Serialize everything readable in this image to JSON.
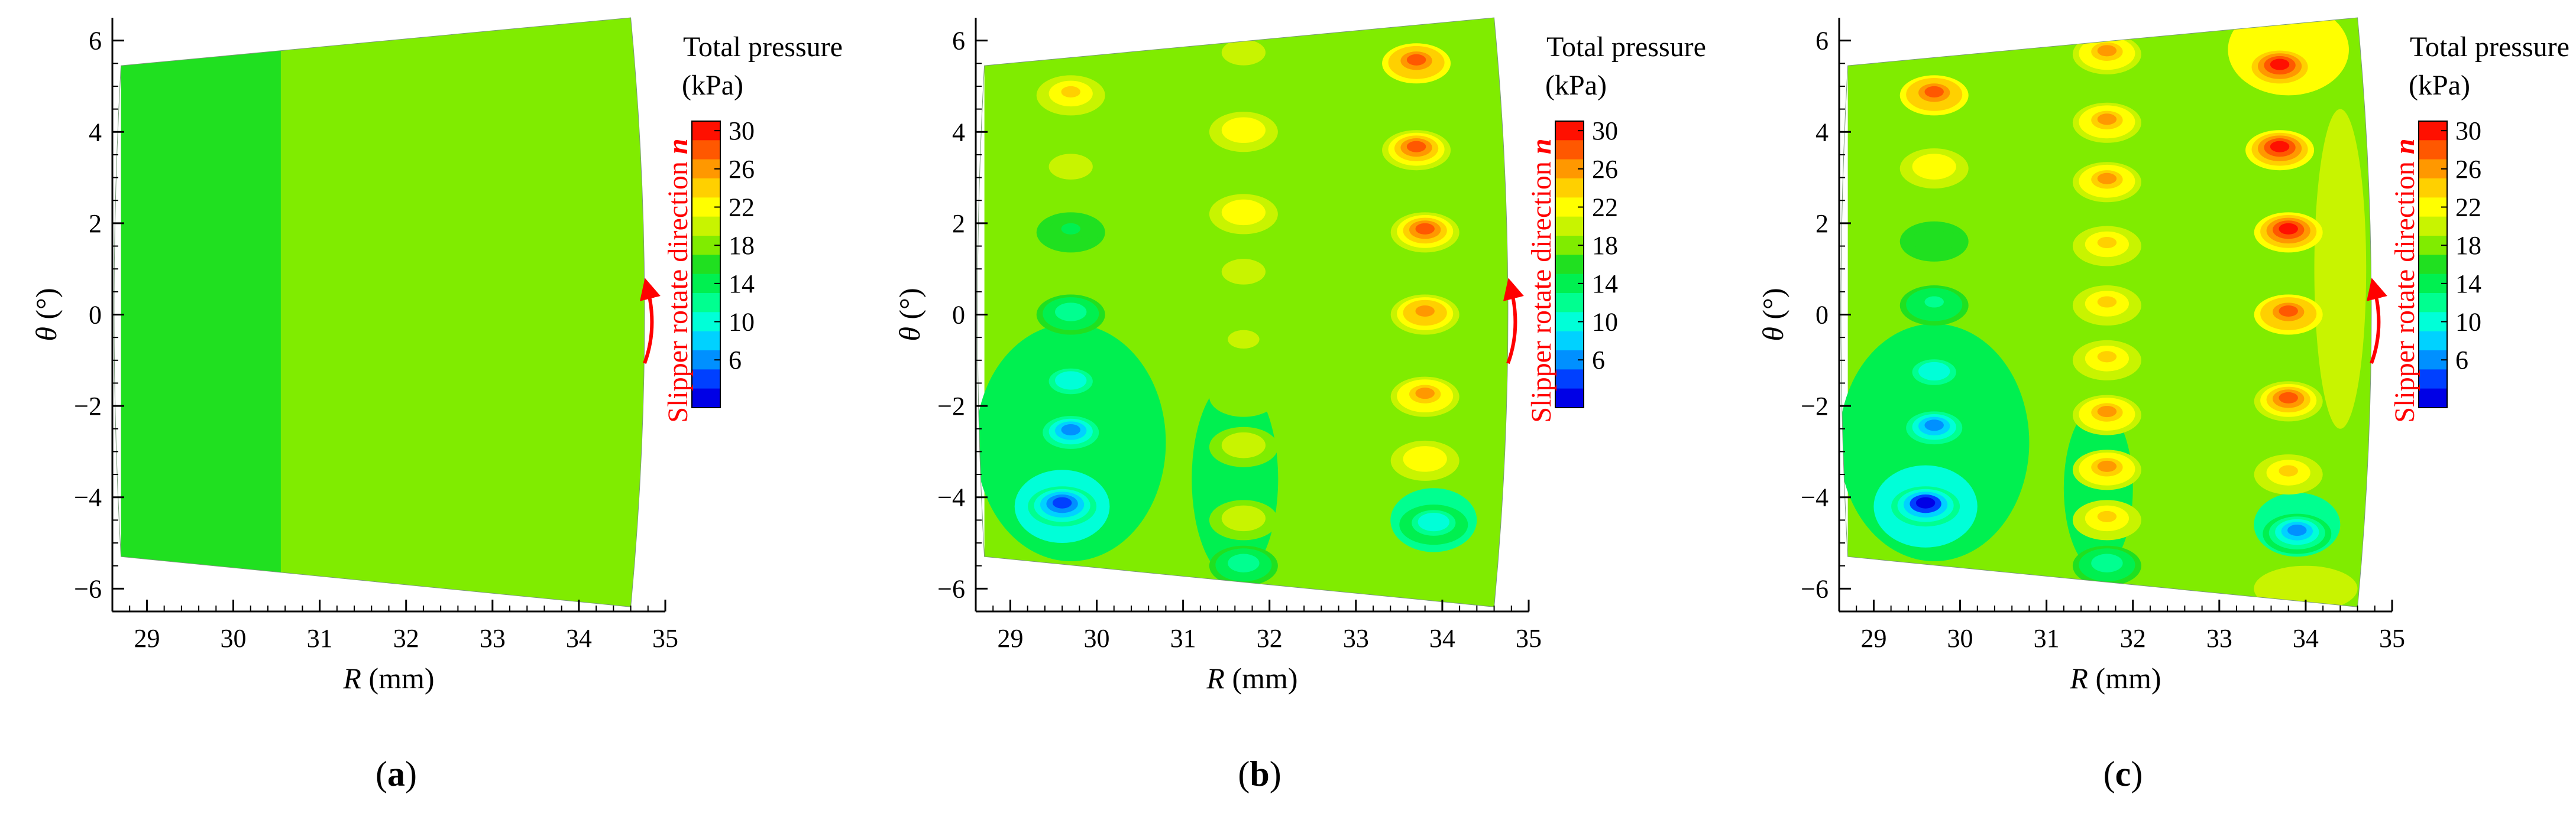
{
  "chart_data": [
    {
      "type": "heatmap",
      "panel_label": "a",
      "xlabel_symbol": "R",
      "xlabel_unit": " (mm)",
      "ylabel_symbol": "θ",
      "ylabel_unit": " (°)",
      "xlim": [
        28.6,
        35
      ],
      "ylim": [
        -6.5,
        6.5
      ],
      "xticks": [
        29,
        30,
        31,
        32,
        33,
        34,
        35
      ],
      "yticks": [
        -6,
        -4,
        -2,
        0,
        2,
        4,
        6
      ],
      "domain": {
        "r_inner": 28.7,
        "r_outer": 34.6,
        "theta_top_inner": 5.45,
        "theta_top_outer": 6.5,
        "theta_bottom_inner": -5.3,
        "theta_bottom_outer": -6.4
      },
      "regions": [
        {
          "r_from": 28.7,
          "r_to": 30.55,
          "level": 18.5
        },
        {
          "r_from": 30.55,
          "r_to": 34.6,
          "level": 19.5
        }
      ],
      "spots": [],
      "colorbar_title": "Total pressure",
      "colorbar_unit": "(kPa)",
      "colorbar_ticks": [
        "30",
        "26",
        "22",
        "18",
        "14",
        "10",
        "6"
      ],
      "annotation_text": "Slipper rotate direction ",
      "annotation_symbol": "n"
    },
    {
      "type": "heatmap",
      "panel_label": "b",
      "xlabel_symbol": "R",
      "xlabel_unit": " (mm)",
      "ylabel_symbol": "θ",
      "ylabel_unit": " (°)",
      "xlim": [
        28.6,
        35
      ],
      "ylim": [
        -6.5,
        6.5
      ],
      "xticks": [
        29,
        30,
        31,
        32,
        33,
        34,
        35
      ],
      "yticks": [
        -6,
        -4,
        -2,
        0,
        2,
        4,
        6
      ],
      "domain": {
        "r_inner": 28.7,
        "r_outer": 34.6,
        "theta_top_inner": 5.45,
        "theta_top_outer": 6.5,
        "theta_bottom_inner": -5.3,
        "theta_bottom_outer": -6.4
      },
      "regions": [
        {
          "r_from": 28.7,
          "r_to": 34.6,
          "level": 19
        }
      ],
      "low_zones": [
        {
          "r": 29.7,
          "theta": -2.8,
          "rr": 1.1,
          "rt": 2.6,
          "level": 15.5
        },
        {
          "r": 29.6,
          "theta": -4.2,
          "rr": 0.55,
          "rt": 0.8,
          "level": 13
        },
        {
          "r": 31.6,
          "theta": -3.6,
          "rr": 0.5,
          "rt": 2.2,
          "level": 16.5
        },
        {
          "r": 33.9,
          "theta": -4.5,
          "rr": 0.5,
          "rt": 0.7,
          "level": 15
        }
      ],
      "spots": [
        {
          "r": 29.7,
          "theta": 4.8,
          "peak": 25
        },
        {
          "r": 29.7,
          "theta": 3.2,
          "peak": 22
        },
        {
          "r": 29.7,
          "theta": 1.8,
          "peak": 17
        },
        {
          "r": 29.7,
          "theta": 0.0,
          "peak": 14
        },
        {
          "r": 29.7,
          "theta": -1.5,
          "peak": 12
        },
        {
          "r": 29.7,
          "theta": -2.6,
          "peak": 10
        },
        {
          "r": 29.6,
          "theta": -4.2,
          "peak": 7
        },
        {
          "r": 31.7,
          "theta": 5.7,
          "peak": 22
        },
        {
          "r": 31.7,
          "theta": 4.0,
          "peak": 24
        },
        {
          "r": 31.7,
          "theta": 2.2,
          "peak": 24
        },
        {
          "r": 31.7,
          "theta": 0.9,
          "peak": 22
        },
        {
          "r": 31.7,
          "theta": -0.6,
          "peak": 21
        },
        {
          "r": 31.7,
          "theta": -1.8,
          "peak": 20
        },
        {
          "r": 31.7,
          "theta": -2.9,
          "peak": 22
        },
        {
          "r": 31.7,
          "theta": -4.5,
          "peak": 22
        },
        {
          "r": 31.7,
          "theta": -5.5,
          "peak": 14
        },
        {
          "r": 33.7,
          "theta": 5.5,
          "peak": 29
        },
        {
          "r": 33.7,
          "theta": 3.6,
          "peak": 28
        },
        {
          "r": 33.8,
          "theta": 1.8,
          "peak": 28
        },
        {
          "r": 33.8,
          "theta": 0.0,
          "peak": 27
        },
        {
          "r": 33.8,
          "theta": -1.8,
          "peak": 26
        },
        {
          "r": 33.8,
          "theta": -3.2,
          "peak": 24
        },
        {
          "r": 33.9,
          "theta": -4.6,
          "peak": 12
        }
      ],
      "colorbar_title": "Total pressure",
      "colorbar_unit": "(kPa)",
      "colorbar_ticks": [
        "30",
        "26",
        "22",
        "18",
        "14",
        "10",
        "6"
      ],
      "annotation_text": "Slipper rotate direction ",
      "annotation_symbol": "n"
    },
    {
      "type": "heatmap",
      "panel_label": "c",
      "xlabel_symbol": "R",
      "xlabel_unit": " (mm)",
      "ylabel_symbol": "θ",
      "ylabel_unit": " (°)",
      "xlim": [
        28.6,
        35
      ],
      "ylim": [
        -6.5,
        6.5
      ],
      "xticks": [
        29,
        30,
        31,
        32,
        33,
        34,
        35
      ],
      "yticks": [
        -6,
        -4,
        -2,
        0,
        2,
        4,
        6
      ],
      "domain": {
        "r_inner": 28.7,
        "r_outer": 34.6,
        "theta_top_inner": 5.45,
        "theta_top_outer": 6.5,
        "theta_bottom_inner": -5.3,
        "theta_bottom_outer": -6.4
      },
      "regions": [
        {
          "r_from": 28.7,
          "r_to": 34.6,
          "level": 19
        }
      ],
      "high_zones": [
        {
          "r": 33.8,
          "theta": 5.8,
          "rr": 0.7,
          "rt": 1.0,
          "level": 23
        },
        {
          "r": 34.4,
          "theta": 1.0,
          "rr": 0.3,
          "rt": 3.5,
          "level": 21
        },
        {
          "r": 34.0,
          "theta": -6.0,
          "rr": 0.6,
          "rt": 0.5,
          "level": 21
        }
      ],
      "low_zones": [
        {
          "r": 29.7,
          "theta": -2.8,
          "rr": 1.1,
          "rt": 2.6,
          "level": 15.5
        },
        {
          "r": 29.6,
          "theta": -4.2,
          "rr": 0.6,
          "rt": 0.9,
          "level": 13
        },
        {
          "r": 31.6,
          "theta": -3.8,
          "rr": 0.4,
          "rt": 1.8,
          "level": 17
        },
        {
          "r": 33.9,
          "theta": -4.6,
          "rr": 0.5,
          "rt": 0.7,
          "level": 15
        }
      ],
      "spots": [
        {
          "r": 29.7,
          "theta": 4.8,
          "peak": 29
        },
        {
          "r": 29.7,
          "theta": 3.2,
          "peak": 24
        },
        {
          "r": 29.7,
          "theta": 1.6,
          "peak": 18
        },
        {
          "r": 29.7,
          "theta": 0.2,
          "peak": 15
        },
        {
          "r": 29.7,
          "theta": -1.3,
          "peak": 12
        },
        {
          "r": 29.7,
          "theta": -2.5,
          "peak": 10
        },
        {
          "r": 29.6,
          "theta": -4.2,
          "peak": 6
        },
        {
          "r": 31.7,
          "theta": 5.7,
          "peak": 26
        },
        {
          "r": 31.7,
          "theta": 4.2,
          "peak": 26
        },
        {
          "r": 31.7,
          "theta": 2.9,
          "peak": 26
        },
        {
          "r": 31.7,
          "theta": 1.5,
          "peak": 25
        },
        {
          "r": 31.7,
          "theta": 0.2,
          "peak": 25
        },
        {
          "r": 31.7,
          "theta": -1.0,
          "peak": 25
        },
        {
          "r": 31.7,
          "theta": -2.2,
          "peak": 26
        },
        {
          "r": 31.7,
          "theta": -3.4,
          "peak": 26
        },
        {
          "r": 31.7,
          "theta": -4.5,
          "peak": 25
        },
        {
          "r": 31.7,
          "theta": -5.5,
          "peak": 14
        },
        {
          "r": 33.7,
          "theta": 5.4,
          "peak": 31
        },
        {
          "r": 33.7,
          "theta": 3.6,
          "peak": 30
        },
        {
          "r": 33.8,
          "theta": 1.8,
          "peak": 30
        },
        {
          "r": 33.8,
          "theta": 0.0,
          "peak": 29
        },
        {
          "r": 33.8,
          "theta": -1.9,
          "peak": 28
        },
        {
          "r": 33.8,
          "theta": -3.5,
          "peak": 25
        },
        {
          "r": 33.9,
          "theta": -4.8,
          "peak": 10
        }
      ],
      "colorbar_title": "Total pressure",
      "colorbar_unit": "(kPa)",
      "colorbar_ticks": [
        "30",
        "26",
        "22",
        "18",
        "14",
        "10",
        "6"
      ],
      "annotation_text": "Slipper rotate direction ",
      "annotation_symbol": "n"
    }
  ],
  "colormap": {
    "min": 5,
    "max": 31,
    "colors": [
      "#0000e6",
      "#0040ff",
      "#0090ff",
      "#00d2ff",
      "#00ffd8",
      "#00ff90",
      "#00f050",
      "#20e020",
      "#80ec00",
      "#c8f400",
      "#ffff00",
      "#ffd000",
      "#ff9800",
      "#ff5800",
      "#ff1000"
    ]
  }
}
